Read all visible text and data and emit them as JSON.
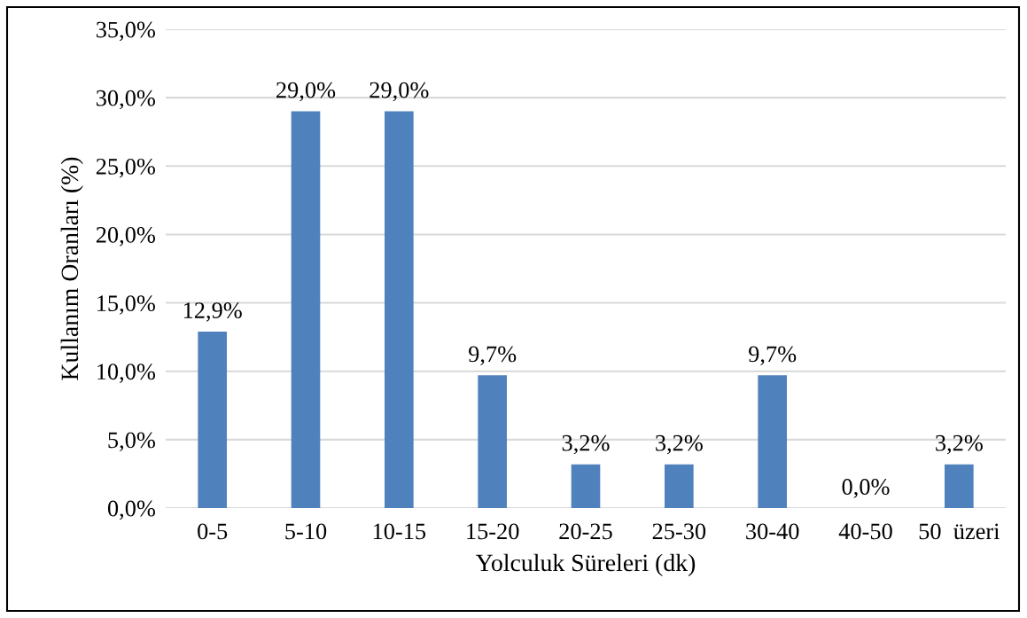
{
  "chart_data": {
    "type": "bar",
    "xlabel": "Yolculuk Süreleri (dk)",
    "ylabel": "Kullanım Oranları (%)",
    "categories": [
      "0-5",
      "5-10",
      "10-15",
      "15-20",
      "20-25",
      "25-30",
      "30-40",
      "40-50",
      "50  üzeri"
    ],
    "values": [
      12.9,
      29.0,
      29.0,
      9.7,
      3.2,
      3.2,
      9.7,
      0.0,
      3.2
    ],
    "value_labels": [
      "12,9%",
      "29,0%",
      "29,0%",
      "9,7%",
      "3,2%",
      "3,2%",
      "9,7%",
      "0,0%",
      "3,2%"
    ],
    "color": "#4f81bd",
    "ylim": [
      0,
      35
    ],
    "yticks": [
      {
        "value": 0,
        "label": "0,0%"
      },
      {
        "value": 5,
        "label": "5,0%"
      },
      {
        "value": 10,
        "label": "10,0%"
      },
      {
        "value": 15,
        "label": "15,0%"
      },
      {
        "value": 20,
        "label": "20,0%"
      },
      {
        "value": 25,
        "label": "25,0%"
      },
      {
        "value": 30,
        "label": "30,0%"
      },
      {
        "value": 35,
        "label": "35,0%"
      }
    ],
    "grid": "y"
  }
}
